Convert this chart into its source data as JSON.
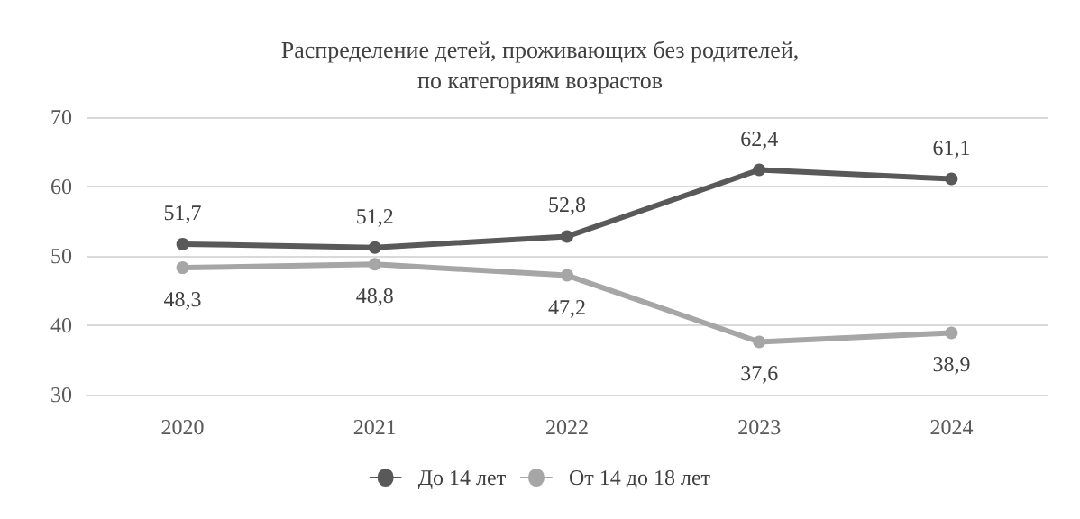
{
  "chart_data": {
    "type": "line",
    "title": "Распределение детей, проживающих без родителей,\nпо категориям возрастов",
    "categories": [
      "2020",
      "2021",
      "2022",
      "2023",
      "2024"
    ],
    "series": [
      {
        "name": "До 14 лет",
        "color": "#595959",
        "values": [
          51.7,
          51.2,
          52.8,
          62.4,
          61.1
        ],
        "value_labels": [
          "51,7",
          "51,2",
          "52,8",
          "62,4",
          "61,1"
        ]
      },
      {
        "name": "От 14 до 18 лет",
        "color": "#a6a6a6",
        "values": [
          48.3,
          48.8,
          47.2,
          37.6,
          38.9
        ],
        "value_labels": [
          "48,3",
          "48,8",
          "47,2",
          "37,6",
          "38,9"
        ]
      }
    ],
    "ylim": [
      30,
      70
    ],
    "yticks": [
      30,
      40,
      50,
      60,
      70
    ],
    "grid": "y",
    "legend": "bottom",
    "marker": "circle",
    "line_style": "solid"
  }
}
